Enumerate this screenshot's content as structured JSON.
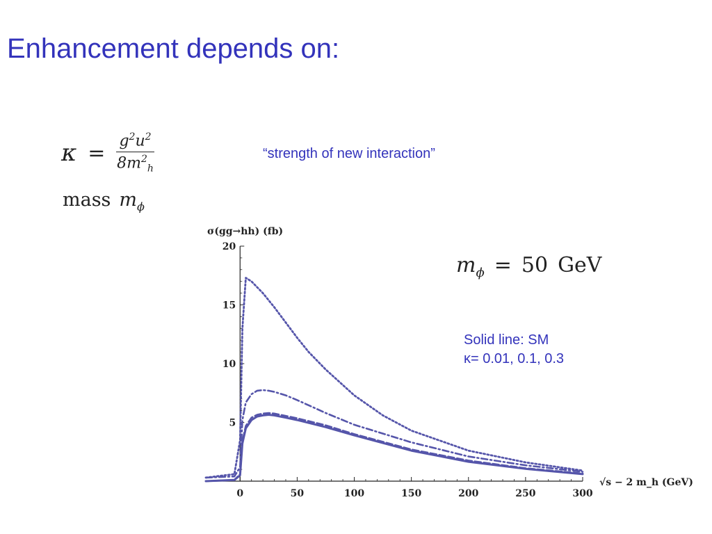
{
  "slide": {
    "title": "Enhancement depends on:",
    "kappa_symbol": "κ",
    "equals": "=",
    "kappa_numerator_base": "g",
    "kappa_numerator_exp": "2",
    "kappa_numerator_base2": "u",
    "kappa_numerator_exp2": "2",
    "kappa_denominator_coeff": "8m",
    "kappa_denominator_exp": "2",
    "kappa_denominator_sub": "h",
    "strength_label": "“strength of new interaction”",
    "mass_word": "mass",
    "mass_var": "m",
    "mass_sub": "ϕ",
    "mphi_var": "m",
    "mphi_sub": "ϕ",
    "mphi_equals": "=",
    "mphi_value": "50",
    "mphi_unit": "GeV",
    "legend_line1": "Solid line: SM",
    "legend_line2": "κ= 0.01, 0.1, 0.3"
  },
  "chart_data": {
    "type": "line",
    "ylabel": "σ(gg→hh) (fb)",
    "xlabel": "√s − 2 m_h (GeV)",
    "xlim": [
      -30,
      300
    ],
    "ylim": [
      0,
      20
    ],
    "x_ticks": [
      0,
      50,
      100,
      150,
      200,
      250,
      300
    ],
    "y_ticks": [
      5,
      10,
      15,
      20
    ],
    "grid": false,
    "color": "#5555aa",
    "series": [
      {
        "name": "SM",
        "style": "solid",
        "x": [
          -30,
          -5,
          0,
          2,
          5,
          10,
          15,
          20,
          25,
          30,
          40,
          50,
          75,
          100,
          150,
          200,
          250,
          300
        ],
        "y": [
          0,
          0.1,
          0.5,
          3.2,
          4.5,
          5.2,
          5.5,
          5.6,
          5.65,
          5.6,
          5.4,
          5.2,
          4.6,
          3.9,
          2.6,
          1.65,
          1.05,
          0.6
        ]
      },
      {
        "name": "κ = 0.01",
        "style": "dashed",
        "x": [
          -30,
          -5,
          0,
          2,
          5,
          10,
          15,
          20,
          25,
          30,
          40,
          50,
          75,
          100,
          150,
          200,
          250,
          300
        ],
        "y": [
          0,
          0.1,
          0.6,
          3.4,
          4.7,
          5.4,
          5.65,
          5.75,
          5.8,
          5.75,
          5.55,
          5.35,
          4.75,
          4.0,
          2.7,
          1.75,
          1.1,
          0.65
        ]
      },
      {
        "name": "κ = 0.1",
        "style": "dashdot",
        "x": [
          -30,
          -5,
          0,
          2,
          5,
          10,
          15,
          20,
          25,
          30,
          40,
          50,
          75,
          100,
          150,
          200,
          250,
          300
        ],
        "y": [
          0.3,
          0.4,
          1.2,
          5.2,
          6.7,
          7.4,
          7.7,
          7.75,
          7.7,
          7.6,
          7.3,
          6.9,
          5.8,
          4.8,
          3.3,
          2.1,
          1.35,
          0.8
        ]
      },
      {
        "name": "κ = 0.3",
        "style": "dotted",
        "x": [
          -30,
          -5,
          0,
          2,
          5,
          10,
          20,
          30,
          40,
          50,
          60,
          75,
          100,
          125,
          150,
          200,
          250,
          300
        ],
        "y": [
          0.3,
          0.6,
          3.5,
          13.0,
          17.3,
          17.0,
          16.0,
          14.8,
          13.5,
          12.2,
          11.0,
          9.5,
          7.3,
          5.6,
          4.3,
          2.6,
          1.6,
          0.9
        ]
      }
    ]
  }
}
